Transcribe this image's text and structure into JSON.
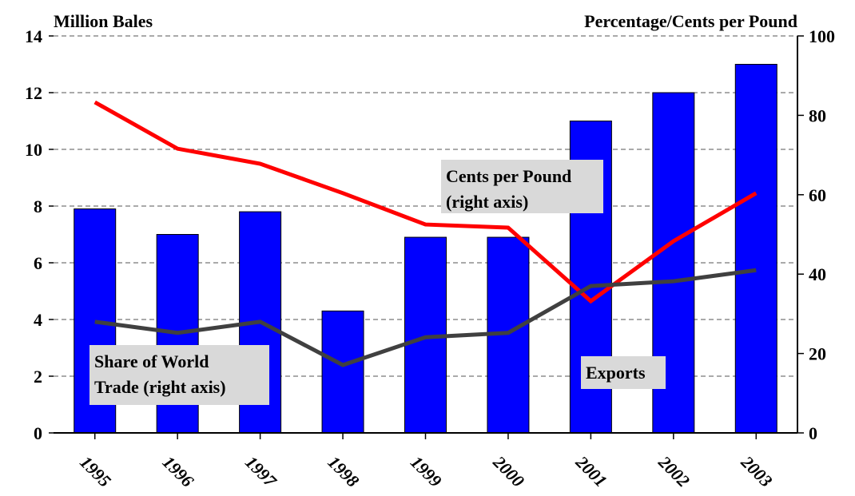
{
  "chart_data": {
    "type": "bar",
    "y_label": "Million Bales",
    "y2_label": "Percentage/Cents per Pound",
    "categories": [
      "1995",
      "1996",
      "1997",
      "1998",
      "1999",
      "2000",
      "2001",
      "2002",
      "2003"
    ],
    "series": [
      {
        "type": "bar",
        "color": "#0000ff",
        "label": [
          "Exports"
        ],
        "values": [
          7.9,
          7.0,
          7.8,
          4.3,
          6.9,
          6.9,
          11.0,
          12.0,
          13.0
        ]
      },
      {
        "type": "line",
        "axis": "y2",
        "color": "#ff0000",
        "label": [
          "Cents per Pound",
          "(right axis)"
        ],
        "values": [
          83.3,
          71.6,
          67.8,
          60.4,
          52.5,
          51.7,
          33.2,
          48.3,
          60.4
        ]
      },
      {
        "type": "line",
        "axis": "y2",
        "color": "#404040",
        "label": [
          "Share of World",
          "Trade (right axis)"
        ],
        "values": [
          28.0,
          25.2,
          28.0,
          17.1,
          24.1,
          25.2,
          37.0,
          38.2,
          41.0
        ]
      }
    ],
    "ylim": [
      0,
      14
    ],
    "yticks": [
      0,
      2,
      4,
      6,
      8,
      10,
      12,
      14
    ],
    "y2lim": [
      0,
      100
    ],
    "y2ticks": [
      0,
      20,
      40,
      60,
      80,
      100
    ],
    "grid": true
  }
}
